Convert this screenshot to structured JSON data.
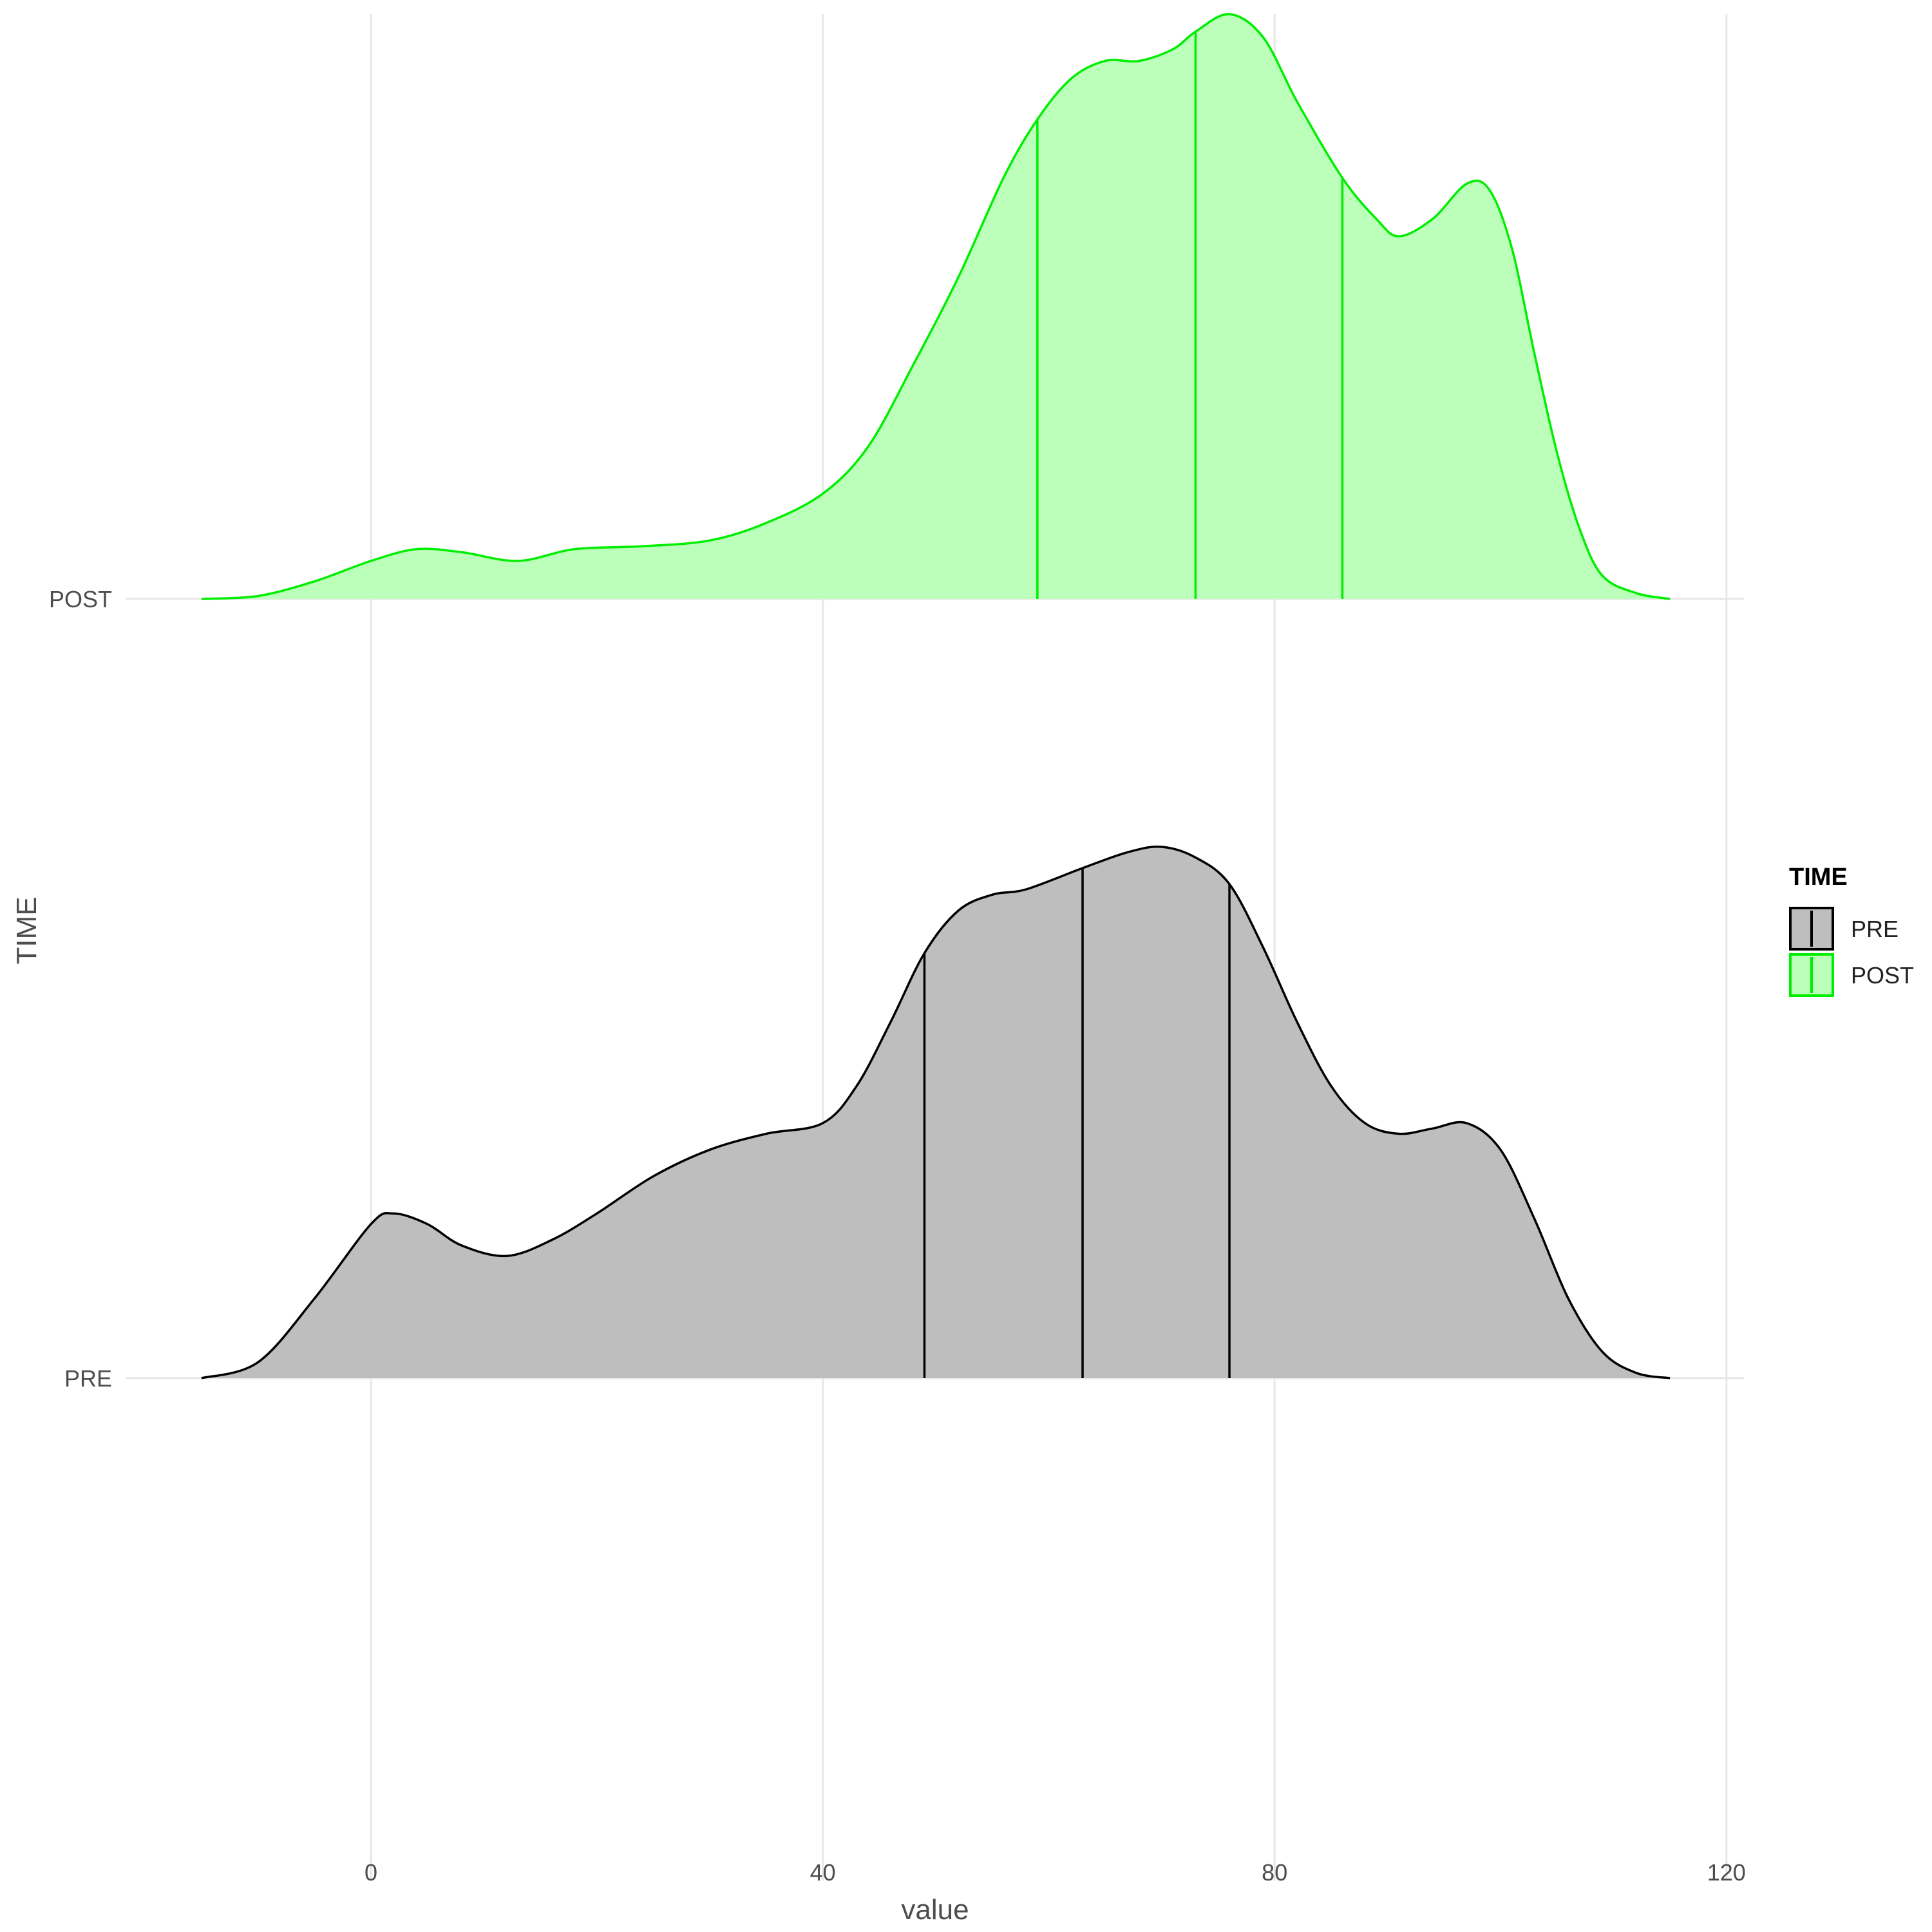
{
  "chart_data": {
    "type": "ridgeline-density",
    "xlabel": "value",
    "ylabel": "TIME",
    "xlim": [
      -20,
      125
    ],
    "x_ticks": [
      0,
      40,
      80,
      120
    ],
    "x_tick_labels": [
      "0",
      "40",
      "80",
      "120"
    ],
    "grid": true,
    "legend": {
      "title": "TIME",
      "placement": "right",
      "items": [
        "PRE",
        "POST"
      ]
    },
    "series": [
      {
        "name": "PRE",
        "fill": "#bebebe",
        "stroke": "#000000",
        "quantiles": [
          49,
          63,
          76
        ],
        "density": [
          [
            -15,
            0.0
          ],
          [
            -10,
            0.03
          ],
          [
            -5,
            0.15
          ],
          [
            0,
            0.29
          ],
          [
            2,
            0.31
          ],
          [
            5,
            0.29
          ],
          [
            8,
            0.25
          ],
          [
            12,
            0.23
          ],
          [
            16,
            0.26
          ],
          [
            20,
            0.31
          ],
          [
            25,
            0.38
          ],
          [
            30,
            0.43
          ],
          [
            35,
            0.46
          ],
          [
            40,
            0.48
          ],
          [
            43,
            0.55
          ],
          [
            46,
            0.67
          ],
          [
            49,
            0.8
          ],
          [
            52,
            0.88
          ],
          [
            55,
            0.91
          ],
          [
            58,
            0.92
          ],
          [
            63,
            0.96
          ],
          [
            67,
            0.99
          ],
          [
            70,
            1.0
          ],
          [
            73,
            0.98
          ],
          [
            76,
            0.93
          ],
          [
            79,
            0.81
          ],
          [
            82,
            0.67
          ],
          [
            85,
            0.55
          ],
          [
            88,
            0.48
          ],
          [
            91,
            0.46
          ],
          [
            94,
            0.47
          ],
          [
            97,
            0.48
          ],
          [
            100,
            0.43
          ],
          [
            103,
            0.3
          ],
          [
            106,
            0.15
          ],
          [
            109,
            0.05
          ],
          [
            112,
            0.01
          ],
          [
            115,
            0.0
          ]
        ]
      },
      {
        "name": "POST",
        "fill": "#bbffbb",
        "stroke": "#00ee00",
        "quantiles": [
          59,
          73,
          86
        ],
        "density": [
          [
            -15,
            0.0
          ],
          [
            -10,
            0.005
          ],
          [
            -5,
            0.03
          ],
          [
            0,
            0.065
          ],
          [
            4,
            0.085
          ],
          [
            8,
            0.08
          ],
          [
            13,
            0.065
          ],
          [
            18,
            0.085
          ],
          [
            24,
            0.09
          ],
          [
            30,
            0.1
          ],
          [
            35,
            0.13
          ],
          [
            40,
            0.18
          ],
          [
            44,
            0.26
          ],
          [
            48,
            0.4
          ],
          [
            52,
            0.55
          ],
          [
            56,
            0.72
          ],
          [
            59,
            0.82
          ],
          [
            62,
            0.89
          ],
          [
            65,
            0.92
          ],
          [
            68,
            0.92
          ],
          [
            71,
            0.94
          ],
          [
            73,
            0.97
          ],
          [
            76,
            1.0
          ],
          [
            79,
            0.96
          ],
          [
            82,
            0.85
          ],
          [
            86,
            0.72
          ],
          [
            89,
            0.65
          ],
          [
            91,
            0.62
          ],
          [
            94,
            0.65
          ],
          [
            97,
            0.71
          ],
          [
            99,
            0.7
          ],
          [
            101,
            0.6
          ],
          [
            103,
            0.42
          ],
          [
            105,
            0.25
          ],
          [
            107,
            0.12
          ],
          [
            109,
            0.04
          ],
          [
            112,
            0.01
          ],
          [
            115,
            0.0
          ]
        ]
      }
    ]
  }
}
